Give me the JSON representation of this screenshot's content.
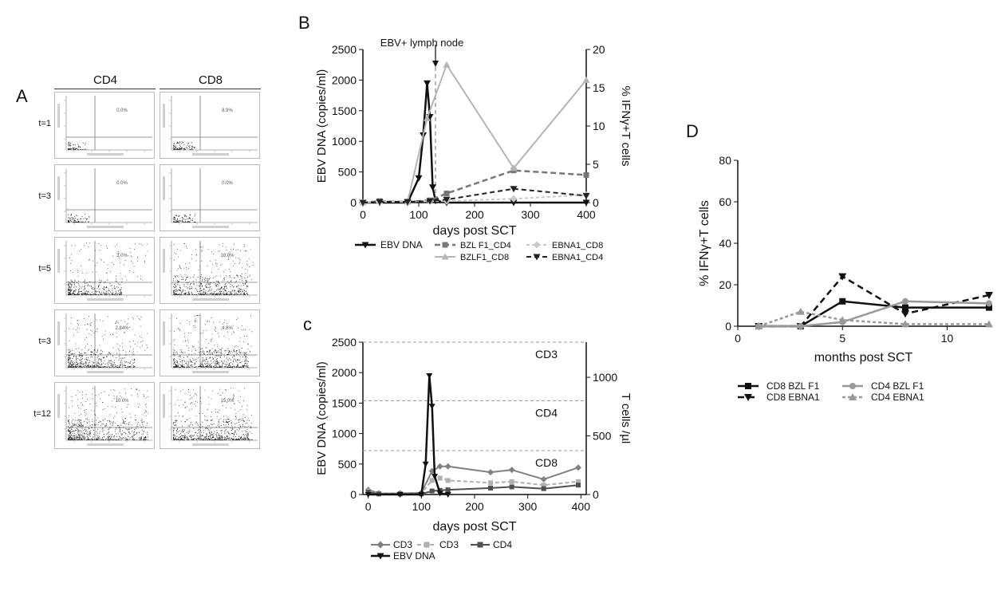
{
  "panels": {
    "A": {
      "label": "A",
      "columns": [
        "CD4",
        "CD8"
      ],
      "rows": [
        {
          "label": "t=1",
          "cd4_pct": "0.0%",
          "cd8_pct": "8.9%",
          "cd4_density": 0.05,
          "cd8_density": 0.1
        },
        {
          "label": "t=3",
          "cd4_pct": "0.0%",
          "cd8_pct": "0.0%",
          "cd4_density": 0.1,
          "cd8_density": 0.1
        },
        {
          "label": "t=5",
          "cd4_pct": "3.0%",
          "cd8_pct": "18.0%",
          "cd4_density": 0.6,
          "cd8_density": 0.9
        },
        {
          "label": "t=3",
          "cd4_pct": "2.84%",
          "cd8_pct": "4.8%",
          "cd4_density": 0.8,
          "cd8_density": 0.9
        },
        {
          "label": "t=12",
          "cd4_pct": "10.0%",
          "cd8_pct": "15.0%",
          "cd4_density": 1.0,
          "cd8_density": 1.0
        }
      ]
    },
    "B": {
      "label": "B"
    },
    "C": {
      "label": "c"
    },
    "D": {
      "label": "D"
    }
  },
  "chart_data": [
    {
      "id": "B",
      "type": "line",
      "xlabel": "days post SCT",
      "ylabel_left": "EBV DNA (copies/ml)",
      "ylabel_right": "% IFNγ+T cells",
      "xlim": [
        0,
        400
      ],
      "xticks": [
        0,
        100,
        200,
        300,
        400
      ],
      "ylim_left": [
        0,
        2500
      ],
      "yticks_left": [
        0,
        500,
        1000,
        1500,
        2000,
        2500
      ],
      "ylim_right": [
        0,
        20
      ],
      "yticks_right": [
        0,
        5,
        10,
        15,
        20
      ],
      "annotation": {
        "text": "EBV+ lymph node",
        "x": 130
      },
      "series": [
        {
          "name": "EBV DNA",
          "axis": "left",
          "color": "#111111",
          "dash": "",
          "marker": "triangle-down",
          "width": 2.5,
          "x": [
            0,
            30,
            80,
            100,
            108,
            115,
            120,
            125,
            130,
            150,
            270,
            400
          ],
          "y": [
            0,
            0,
            0,
            400,
            1100,
            1950,
            1400,
            250,
            30,
            0,
            0,
            0
          ]
        },
        {
          "name": "BZL F1_CD4",
          "axis": "right",
          "color": "#777777",
          "dash": "7,4",
          "marker": "square",
          "width": 2.5,
          "x": [
            0,
            30,
            80,
            120,
            150,
            270,
            400
          ],
          "y": [
            0,
            0.2,
            0.1,
            0.3,
            1.2,
            4.2,
            3.6
          ]
        },
        {
          "name": "BZLF1_CD8",
          "axis": "right",
          "color": "#b5b5b5",
          "dash": "",
          "marker": "triangle-up",
          "width": 2,
          "x": [
            0,
            30,
            80,
            115,
            150,
            270,
            400
          ],
          "y": [
            0,
            0.2,
            0.1,
            11,
            18,
            4.5,
            16
          ]
        },
        {
          "name": "EBNA1_CD8",
          "axis": "right",
          "color": "#c9c9c9",
          "dash": "4,3",
          "marker": "diamond",
          "width": 2,
          "x": [
            0,
            30,
            80,
            120,
            150,
            270,
            400
          ],
          "y": [
            0,
            0.1,
            0.1,
            0.2,
            0.2,
            0.5,
            1.0
          ]
        },
        {
          "name": "EBNA1_CD4",
          "axis": "right",
          "color": "#222222",
          "dash": "6,4",
          "marker": "triangle-down",
          "width": 2,
          "x": [
            0,
            30,
            80,
            120,
            150,
            270,
            400
          ],
          "y": [
            0,
            0.1,
            0.1,
            0.2,
            0.4,
            1.8,
            0.9
          ]
        }
      ]
    },
    {
      "id": "C",
      "type": "line",
      "xlabel": "days post SCT",
      "ylabel_left": "EBV DNA (copies/ml)",
      "ylabel_right": "T cells /µl",
      "xlim": [
        -10,
        410
      ],
      "xticks": [
        0,
        100,
        200,
        300,
        400
      ],
      "ylim_left": [
        0,
        2500
      ],
      "yticks_left": [
        0,
        500,
        1000,
        1500,
        2000,
        2500
      ],
      "ylim_right": [
        0,
        1300
      ],
      "yticks_right": [
        0,
        500,
        1000
      ],
      "reference_lines": [
        {
          "label": "CD3",
          "value": 2500
        },
        {
          "label": "CD4",
          "value": 1540
        },
        {
          "label": "CD8",
          "value": 720
        }
      ],
      "series": [
        {
          "name": "CD3",
          "axis": "right",
          "color": "#808080",
          "dash": "",
          "marker": "diamond",
          "width": 2,
          "x": [
            0,
            20,
            60,
            100,
            120,
            135,
            150,
            230,
            270,
            330,
            395
          ],
          "y": [
            40,
            10,
            10,
            15,
            200,
            240,
            240,
            190,
            210,
            130,
            230
          ]
        },
        {
          "name": "CD3",
          "axis": "right",
          "color": "#b0b0b0",
          "dash": "5,3",
          "marker": "square",
          "width": 2,
          "x": [
            0,
            20,
            60,
            100,
            120,
            135,
            150,
            230,
            270,
            330,
            395
          ],
          "y": [
            30,
            8,
            8,
            10,
            120,
            140,
            120,
            100,
            110,
            80,
            110
          ]
        },
        {
          "name": "CD4",
          "axis": "right",
          "color": "#505050",
          "dash": "",
          "marker": "square",
          "width": 2,
          "x": [
            0,
            20,
            60,
            100,
            120,
            135,
            150,
            230,
            270,
            330,
            395
          ],
          "y": [
            20,
            5,
            5,
            5,
            30,
            35,
            40,
            55,
            65,
            50,
            80
          ]
        },
        {
          "name": "EBV DNA",
          "axis": "left",
          "color": "#111111",
          "dash": "",
          "marker": "triangle-down",
          "width": 2.5,
          "x": [
            0,
            60,
            100,
            108,
            115,
            120,
            125,
            135,
            150
          ],
          "y": [
            0,
            0,
            0,
            500,
            1950,
            1450,
            300,
            20,
            0
          ]
        }
      ]
    },
    {
      "id": "D",
      "type": "line",
      "xlabel": "months post SCT",
      "ylabel": "% IFNγ+T cells",
      "xlim": [
        0,
        12
      ],
      "xticks": [
        0,
        5,
        10
      ],
      "ylim": [
        0,
        80
      ],
      "yticks": [
        0,
        20,
        40,
        60,
        80
      ],
      "series": [
        {
          "name": "CD8 BZL F1",
          "color": "#111111",
          "dash": "",
          "marker": "square",
          "width": 2.5,
          "x": [
            1,
            3,
            5,
            8,
            12
          ],
          "y": [
            0,
            0,
            12,
            9,
            9
          ]
        },
        {
          "name": "CD8 EBNA1",
          "color": "#111111",
          "dash": "8,5",
          "marker": "triangle-down",
          "width": 2.5,
          "x": [
            1,
            3,
            5,
            8,
            12
          ],
          "y": [
            0,
            0,
            24,
            6,
            15
          ]
        },
        {
          "name": "CD4 BZL F1",
          "color": "#999999",
          "dash": "",
          "marker": "circle",
          "width": 2.5,
          "x": [
            1,
            3,
            5,
            8,
            12
          ],
          "y": [
            0,
            0,
            2,
            12,
            11
          ]
        },
        {
          "name": "CD4 EBNA1",
          "color": "#999999",
          "dash": "4,3",
          "marker": "triangle-up",
          "width": 2.5,
          "x": [
            1,
            3,
            5,
            8,
            12
          ],
          "y": [
            0,
            7,
            3,
            1,
            1
          ]
        }
      ]
    }
  ]
}
